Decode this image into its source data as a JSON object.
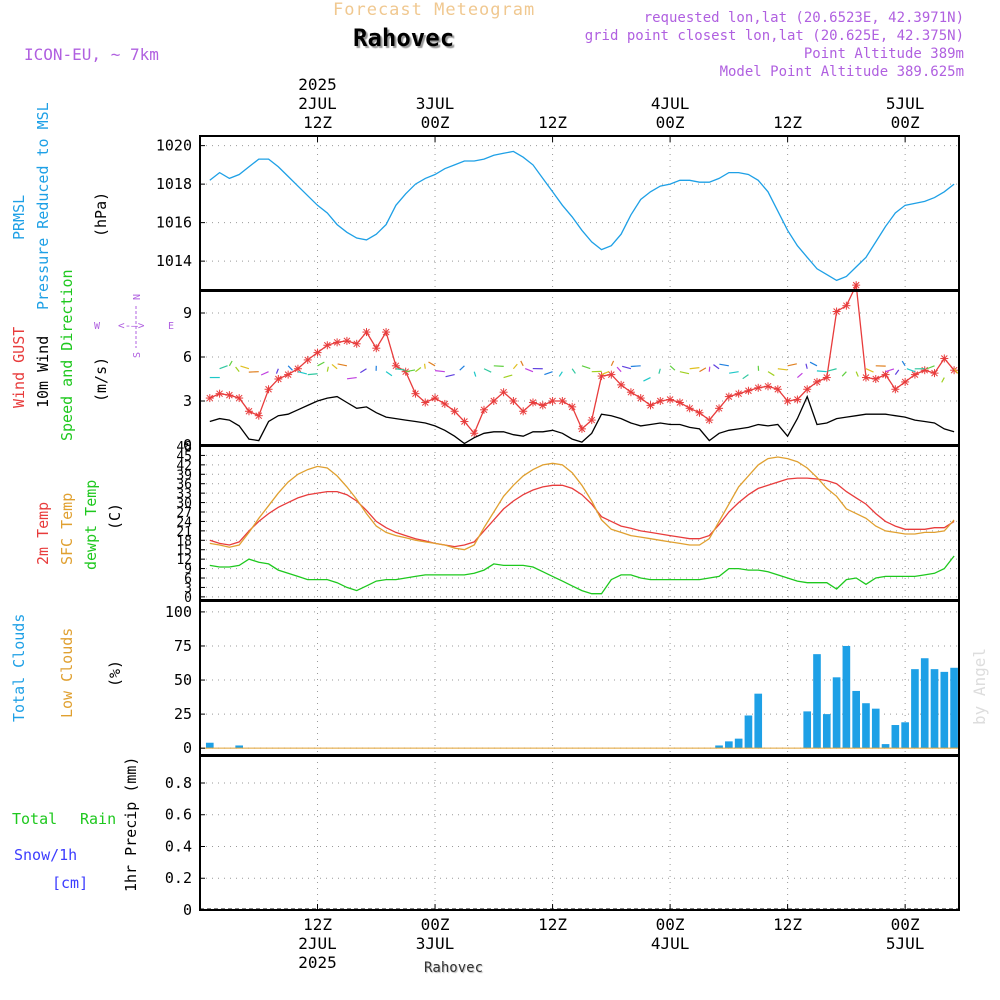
{
  "header": {
    "title": "Forecast Meteogram",
    "location": "Rahovec",
    "model": "ICON-EU, ~ 7km",
    "requested": "requested lon,lat (20.6523E, 42.3971N)",
    "grid_point": "grid point closest lon,lat (20.625E, 42.375N)",
    "point_altitude": "Point Altitude 389m",
    "model_altitude": "Model Point Altitude 389.625m",
    "footer_location": "Rahovec",
    "watermark": "by Angel"
  },
  "colors": {
    "pressure": "#1ea0e6",
    "gust": "#e83c3c",
    "wind": "#000000",
    "direction": "#1ec81e",
    "temp": "#e83c3c",
    "sfc_temp": "#e0a030",
    "dewpoint": "#1ec81e",
    "total_clouds": "#1ea0e6",
    "low_clouds": "#e0a030",
    "rain": "#1ec81e",
    "snow": "#3c3cff",
    "header_purple": "#b060e0",
    "title_orange": "#f0c890"
  },
  "time_axis": {
    "top_labels": [
      {
        "lines": [
          "2025",
          "2JUL",
          "12Z"
        ],
        "hour": 12
      },
      {
        "lines": [
          "3JUL",
          "00Z"
        ],
        "hour": 24
      },
      {
        "lines": [
          "12Z"
        ],
        "hour": 36
      },
      {
        "lines": [
          "4JUL",
          "00Z"
        ],
        "hour": 48
      },
      {
        "lines": [
          "12Z"
        ],
        "hour": 60
      },
      {
        "lines": [
          "5JUL",
          "00Z"
        ],
        "hour": 72
      }
    ],
    "bottom_labels": [
      {
        "lines": [
          "12Z",
          "2JUL",
          "2025"
        ],
        "hour": 12
      },
      {
        "lines": [
          "00Z",
          "3JUL"
        ],
        "hour": 24
      },
      {
        "lines": [
          "12Z"
        ],
        "hour": 36
      },
      {
        "lines": [
          "00Z",
          "4JUL"
        ],
        "hour": 48
      },
      {
        "lines": [
          "12Z"
        ],
        "hour": 60
      },
      {
        "lines": [
          "00Z",
          "5JUL"
        ],
        "hour": 72
      }
    ]
  },
  "panel_labels": {
    "pressure": {
      "l1": "PRMSL",
      "l2": "Pressure Reduced to MSL",
      "unit": "(hPa)"
    },
    "wind": {
      "l1": "Wind GUST",
      "l2": "10m Wind",
      "l3": "Speed and Direction",
      "unit": "(m/s)",
      "compass_n": "N",
      "compass_s": "S",
      "compass_w": "W",
      "compass_e": "E"
    },
    "temp": {
      "l1": "2m Temp",
      "l2": "SFC Temp",
      "l3": "dewpt Temp",
      "unit": "(C)"
    },
    "clouds": {
      "l1": "Total Clouds",
      "l2": "Low Clouds",
      "unit": "(%)"
    },
    "precip": {
      "l1": "Total",
      "l1b": "Rain",
      "l2": "Snow/1h",
      "l3": "[cm]",
      "unit": "1hr Precip (mm)"
    }
  },
  "chart_data": [
    {
      "type": "line",
      "title": "PRMSL Pressure Reduced to MSL",
      "ylabel": "(hPa)",
      "ylim": [
        1012.5,
        1020.5
      ],
      "yticks": [
        1014,
        1016,
        1018,
        1020
      ],
      "x_hours": [
        1,
        2,
        3,
        4,
        5,
        6,
        7,
        8,
        9,
        10,
        11,
        12,
        13,
        14,
        15,
        16,
        17,
        18,
        19,
        20,
        21,
        22,
        23,
        24,
        25,
        26,
        27,
        28,
        29,
        30,
        31,
        32,
        33,
        34,
        35,
        36,
        37,
        38,
        39,
        40,
        41,
        42,
        43,
        44,
        45,
        46,
        47,
        48,
        49,
        50,
        51,
        52,
        53,
        54,
        55,
        56,
        57,
        58,
        59,
        60,
        61,
        62,
        63,
        64,
        65,
        66,
        67,
        68,
        69,
        70,
        71,
        72,
        73,
        74,
        75,
        76,
        77
      ],
      "series": [
        {
          "name": "PRMSL",
          "values": [
            1018.2,
            1018.6,
            1018.3,
            1018.5,
            1018.9,
            1019.3,
            1019.3,
            1018.9,
            1018.4,
            1017.9,
            1017.4,
            1016.9,
            1016.5,
            1015.9,
            1015.5,
            1015.2,
            1015.1,
            1015.4,
            1015.9,
            1016.9,
            1017.5,
            1018.0,
            1018.3,
            1018.5,
            1018.8,
            1019.0,
            1019.2,
            1019.2,
            1019.3,
            1019.5,
            1019.6,
            1019.7,
            1019.4,
            1019.0,
            1018.3,
            1017.6,
            1016.9,
            1016.3,
            1015.6,
            1015.0,
            1014.6,
            1014.8,
            1015.4,
            1016.4,
            1017.2,
            1017.6,
            1017.9,
            1018.0,
            1018.2,
            1018.2,
            1018.1,
            1018.1,
            1018.3,
            1018.6,
            1018.6,
            1018.5,
            1018.2,
            1017.6,
            1016.6,
            1015.6,
            1014.8,
            1014.2,
            1013.6,
            1013.3,
            1013.0,
            1013.2,
            1013.7,
            1014.2,
            1015.0,
            1015.8,
            1016.5,
            1016.9,
            1017.0,
            1017.1,
            1017.3,
            1017.6,
            1018.0
          ]
        }
      ]
    },
    {
      "type": "line",
      "title": "Wind GUST / 10m Wind Speed and Direction",
      "ylabel": "(m/s)",
      "ylim": [
        0,
        10.5
      ],
      "yticks": [
        0,
        3,
        6,
        9
      ],
      "x_hours": [
        1,
        2,
        3,
        4,
        5,
        6,
        7,
        8,
        9,
        10,
        11,
        12,
        13,
        14,
        15,
        16,
        17,
        18,
        19,
        20,
        21,
        22,
        23,
        24,
        25,
        26,
        27,
        28,
        29,
        30,
        31,
        32,
        33,
        34,
        35,
        36,
        37,
        38,
        39,
        40,
        41,
        42,
        43,
        44,
        45,
        46,
        47,
        48,
        49,
        50,
        51,
        52,
        53,
        54,
        55,
        56,
        57,
        58,
        59,
        60,
        61,
        62,
        63,
        64,
        65,
        66,
        67,
        68,
        69,
        70,
        71,
        72,
        73,
        74,
        75,
        76,
        77
      ],
      "series": [
        {
          "name": "Wind GUST",
          "values": [
            3.2,
            3.5,
            3.4,
            3.2,
            2.3,
            2.0,
            3.8,
            4.5,
            4.8,
            5.2,
            5.8,
            6.3,
            6.8,
            7.0,
            7.1,
            6.9,
            7.7,
            6.6,
            7.7,
            5.4,
            5.0,
            3.5,
            2.9,
            3.2,
            2.8,
            2.3,
            1.6,
            0.8,
            2.4,
            3.0,
            3.6,
            3.0,
            2.3,
            2.9,
            2.7,
            3.0,
            3.0,
            2.6,
            1.1,
            1.7,
            4.7,
            4.8,
            4.1,
            3.6,
            3.2,
            2.7,
            3.0,
            3.1,
            2.9,
            2.5,
            2.2,
            1.7,
            2.5,
            3.3,
            3.5,
            3.7,
            3.9,
            4.0,
            3.8,
            3.0,
            3.1,
            3.8,
            4.3,
            4.6,
            9.1,
            9.5,
            10.9,
            4.6,
            4.5,
            4.8,
            3.8,
            4.3,
            4.8,
            5.1,
            4.9,
            5.9,
            5.1
          ]
        },
        {
          "name": "10m Wind",
          "values": [
            1.6,
            1.8,
            1.7,
            1.3,
            0.4,
            0.3,
            1.6,
            2.0,
            2.1,
            2.4,
            2.7,
            3.0,
            3.2,
            3.3,
            2.9,
            2.5,
            2.6,
            2.2,
            1.9,
            1.8,
            1.7,
            1.6,
            1.5,
            1.3,
            1.0,
            0.6,
            0.1,
            0.5,
            0.8,
            0.9,
            0.9,
            0.7,
            0.6,
            0.9,
            0.9,
            1.0,
            0.8,
            0.4,
            0.2,
            0.8,
            2.1,
            2.0,
            1.8,
            1.5,
            1.3,
            1.4,
            1.5,
            1.4,
            1.4,
            1.2,
            1.1,
            0.3,
            0.8,
            1.0,
            1.1,
            1.2,
            1.4,
            1.3,
            1.4,
            0.6,
            1.8,
            3.3,
            1.4,
            1.5,
            1.8,
            1.9,
            2.0,
            2.1,
            2.1,
            2.1,
            2.0,
            1.9,
            1.7,
            1.6,
            1.5,
            1.1,
            0.9
          ]
        }
      ]
    },
    {
      "type": "line",
      "title": "2m Temp / SFC Temp / dewpt Temp",
      "ylabel": "(C)",
      "ylim": [
        -1,
        48
      ],
      "yticks": [
        0,
        3,
        6,
        9,
        12,
        15,
        18,
        21,
        24,
        27,
        30,
        33,
        36,
        39,
        42,
        45,
        48
      ],
      "x_hours": [
        1,
        2,
        3,
        4,
        5,
        6,
        7,
        8,
        9,
        10,
        11,
        12,
        13,
        14,
        15,
        16,
        17,
        18,
        19,
        20,
        21,
        22,
        23,
        24,
        25,
        26,
        27,
        28,
        29,
        30,
        31,
        32,
        33,
        34,
        35,
        36,
        37,
        38,
        39,
        40,
        41,
        42,
        43,
        44,
        45,
        46,
        47,
        48,
        49,
        50,
        51,
        52,
        53,
        54,
        55,
        56,
        57,
        58,
        59,
        60,
        61,
        62,
        63,
        64,
        65,
        66,
        67,
        68,
        69,
        70,
        71,
        72,
        73,
        74,
        75,
        76,
        77
      ],
      "series": [
        {
          "name": "2m Temp",
          "values": [
            18.0,
            17.0,
            16.5,
            17.5,
            21.0,
            24.0,
            26.5,
            28.5,
            30.0,
            31.5,
            32.5,
            33.0,
            33.5,
            33.5,
            32.5,
            30.5,
            27.5,
            24.0,
            22.0,
            20.5,
            19.5,
            18.5,
            17.8,
            17.0,
            16.5,
            16.0,
            16.5,
            17.5,
            21.0,
            24.5,
            28.0,
            30.5,
            32.5,
            34.0,
            35.0,
            35.5,
            35.5,
            34.5,
            32.5,
            29.5,
            25.5,
            24.0,
            22.5,
            21.8,
            21.0,
            20.5,
            20.0,
            19.5,
            19.0,
            18.5,
            18.5,
            19.5,
            23.0,
            27.0,
            30.0,
            32.5,
            34.5,
            35.5,
            36.5,
            37.5,
            37.8,
            37.8,
            37.5,
            37.0,
            36.0,
            33.5,
            31.5,
            29.5,
            26.5,
            24.0,
            22.5,
            21.5,
            21.5,
            21.5,
            22.0,
            22.0,
            24.0
          ]
        },
        {
          "name": "SFC Temp",
          "values": [
            17.0,
            16.5,
            15.8,
            16.5,
            20.5,
            25.0,
            29.0,
            33.0,
            36.5,
            39.0,
            40.5,
            41.5,
            41.0,
            38.5,
            35.0,
            31.0,
            26.5,
            22.5,
            20.5,
            19.5,
            18.8,
            18.0,
            17.5,
            17.0,
            16.5,
            15.5,
            15.0,
            16.5,
            22.0,
            27.0,
            32.0,
            35.5,
            38.5,
            40.5,
            42.0,
            42.5,
            42.0,
            39.5,
            35.5,
            30.5,
            24.5,
            21.5,
            20.5,
            19.5,
            19.0,
            18.5,
            18.0,
            17.5,
            17.0,
            16.5,
            16.5,
            18.5,
            24.0,
            29.5,
            35.0,
            38.5,
            42.0,
            44.0,
            44.5,
            44.0,
            43.0,
            41.0,
            38.0,
            34.5,
            32.0,
            28.0,
            26.5,
            25.0,
            22.5,
            21.0,
            20.5,
            20.0,
            20.0,
            20.5,
            20.5,
            21.0,
            24.5
          ]
        },
        {
          "name": "dewpt Temp",
          "values": [
            10.0,
            9.5,
            9.5,
            10.0,
            12.0,
            11.0,
            10.5,
            8.5,
            7.5,
            6.5,
            5.5,
            5.5,
            5.5,
            4.5,
            3.0,
            2.0,
            3.5,
            5.0,
            5.5,
            5.5,
            6.0,
            6.5,
            7.0,
            7.0,
            7.0,
            7.0,
            7.0,
            7.5,
            8.5,
            10.5,
            10.0,
            10.0,
            10.0,
            9.5,
            8.0,
            6.5,
            5.0,
            3.5,
            2.0,
            1.0,
            1.0,
            5.5,
            7.0,
            7.0,
            6.0,
            5.5,
            5.5,
            5.5,
            5.5,
            5.5,
            5.5,
            6.0,
            6.5,
            9.0,
            9.0,
            8.5,
            8.5,
            8.0,
            7.0,
            6.0,
            5.0,
            4.5,
            4.5,
            4.5,
            2.5,
            5.5,
            6.0,
            4.0,
            6.0,
            6.5,
            6.5,
            6.5,
            6.5,
            7.0,
            7.5,
            9.0,
            13.0
          ]
        }
      ]
    },
    {
      "type": "bar",
      "title": "Total Clouds / Low Clouds",
      "ylabel": "(%)",
      "ylim": [
        -5,
        108
      ],
      "yticks": [
        0,
        25,
        50,
        75,
        100
      ],
      "x_hours": [
        1,
        2,
        3,
        4,
        5,
        6,
        7,
        8,
        9,
        10,
        11,
        12,
        13,
        14,
        15,
        16,
        17,
        18,
        19,
        20,
        21,
        22,
        23,
        24,
        25,
        26,
        27,
        28,
        29,
        30,
        31,
        32,
        33,
        34,
        35,
        36,
        37,
        38,
        39,
        40,
        41,
        42,
        43,
        44,
        45,
        46,
        47,
        48,
        49,
        50,
        51,
        52,
        53,
        54,
        55,
        56,
        57,
        58,
        59,
        60,
        61,
        62,
        63,
        64,
        65,
        66,
        67,
        68,
        69,
        70,
        71,
        72,
        73,
        74,
        75,
        76,
        77
      ],
      "series": [
        {
          "name": "Total Clouds",
          "values": [
            4,
            0,
            0,
            2,
            0,
            0,
            0,
            0,
            0,
            0,
            0,
            0,
            0,
            0,
            0,
            0,
            0,
            0,
            0,
            0,
            0,
            0,
            0,
            0,
            0,
            0,
            0,
            0,
            0,
            0,
            0,
            0,
            0,
            0,
            0,
            0,
            0,
            0,
            0,
            0,
            0,
            0,
            0,
            0,
            0,
            0,
            0,
            0,
            0,
            0,
            0,
            0,
            2,
            5,
            7,
            24,
            40,
            0,
            0,
            0,
            0,
            27,
            69,
            25,
            52,
            75,
            42,
            33,
            29,
            3,
            17,
            19,
            58,
            66,
            58,
            56,
            59
          ]
        },
        {
          "name": "Low Clouds",
          "values": [
            0,
            0,
            0,
            0,
            0,
            0,
            0,
            0,
            0,
            0,
            0,
            0,
            0,
            0,
            0,
            0,
            0,
            0,
            0,
            0,
            0,
            0,
            0,
            0,
            0,
            0,
            0,
            0,
            0,
            0,
            0,
            0,
            0,
            0,
            0,
            0,
            0,
            0,
            0,
            0,
            0,
            0,
            0,
            0,
            0,
            0,
            0,
            0,
            0,
            0,
            0,
            0,
            0,
            0,
            0,
            0,
            0,
            0,
            0,
            0,
            0,
            0,
            0,
            0,
            0,
            0,
            0,
            0,
            0,
            0,
            0,
            0,
            0,
            0,
            0,
            0,
            0
          ]
        }
      ]
    },
    {
      "type": "bar",
      "title": "1hr Precip",
      "ylabel": "1hr Precip (mm)",
      "ylim": [
        0,
        0.97
      ],
      "yticks": [
        0,
        0.2,
        0.4,
        0.6,
        0.8
      ],
      "ytick_labels": [
        "0",
        "0.2",
        "0.4",
        "0.6",
        "0.8"
      ],
      "series": [
        {
          "name": "Total Rain",
          "values": []
        }
      ]
    }
  ]
}
